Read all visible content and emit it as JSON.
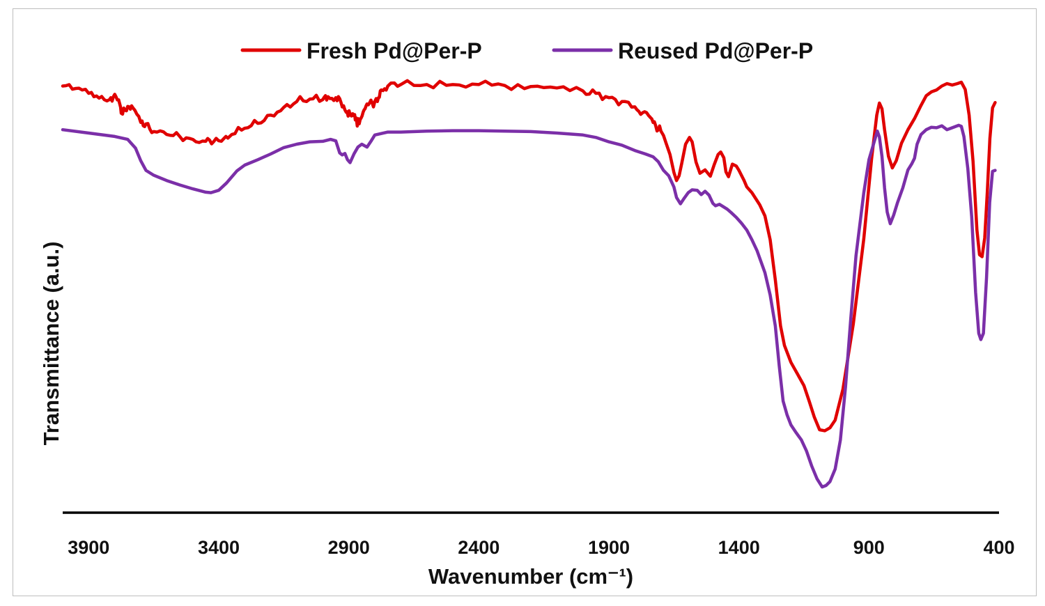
{
  "chart_data": {
    "type": "line",
    "title": "",
    "xlabel": "Wavenumber (cm⁻¹)",
    "ylabel": "Transmittance (a.u.)",
    "xlim": [
      4000,
      400
    ],
    "ylim": [
      0,
      100
    ],
    "x_reversed": true,
    "x_ticks": [
      3900,
      3400,
      2900,
      2400,
      1900,
      1400,
      900,
      400
    ],
    "legend": {
      "position": "top-center"
    },
    "series": [
      {
        "name": "Fresh Pd@Per-P",
        "color": "#e00000",
        "noise_below_cm": 1700,
        "points": [
          [
            4000,
            88
          ],
          [
            3950,
            87.5
          ],
          [
            3900,
            86.5
          ],
          [
            3860,
            85.5
          ],
          [
            3820,
            85.2
          ],
          [
            3800,
            86.3
          ],
          [
            3780,
            84.2
          ],
          [
            3770,
            82.2
          ],
          [
            3750,
            83.8
          ],
          [
            3730,
            83.5
          ],
          [
            3700,
            80.5
          ],
          [
            3680,
            80.2
          ],
          [
            3650,
            78.6
          ],
          [
            3600,
            78
          ],
          [
            3550,
            77.6
          ],
          [
            3500,
            77
          ],
          [
            3450,
            76.6
          ],
          [
            3420,
            76.5
          ],
          [
            3380,
            77.2
          ],
          [
            3350,
            78
          ],
          [
            3300,
            79.3
          ],
          [
            3250,
            80.3
          ],
          [
            3200,
            82
          ],
          [
            3150,
            83.6
          ],
          [
            3100,
            84.8
          ],
          [
            3050,
            85.3
          ],
          [
            3000,
            85.2
          ],
          [
            2980,
            85.8
          ],
          [
            2950,
            85.6
          ],
          [
            2930,
            84.6
          ],
          [
            2910,
            82.6
          ],
          [
            2895,
            82
          ],
          [
            2885,
            82.3
          ],
          [
            2875,
            81
          ],
          [
            2860,
            80.2
          ],
          [
            2845,
            82.6
          ],
          [
            2830,
            84.3
          ],
          [
            2810,
            84.5
          ],
          [
            2790,
            84.8
          ],
          [
            2775,
            87.2
          ],
          [
            2750,
            88
          ],
          [
            2700,
            88.3
          ],
          [
            2600,
            88.3
          ],
          [
            2500,
            88.3
          ],
          [
            2400,
            88.3
          ],
          [
            2300,
            88.1
          ],
          [
            2200,
            87.9
          ],
          [
            2100,
            87.6
          ],
          [
            2000,
            87
          ],
          [
            1950,
            86.5
          ],
          [
            1900,
            85.6
          ],
          [
            1850,
            84.8
          ],
          [
            1800,
            83.7
          ],
          [
            1770,
            82.5
          ],
          [
            1740,
            81.5
          ],
          [
            1720,
            79.8
          ],
          [
            1700,
            78.7
          ],
          [
            1690,
            77.8
          ],
          [
            1680,
            76.2
          ],
          [
            1665,
            73.9
          ],
          [
            1650,
            70.2
          ],
          [
            1640,
            68.5
          ],
          [
            1630,
            69.5
          ],
          [
            1620,
            72
          ],
          [
            1605,
            76
          ],
          [
            1590,
            77.4
          ],
          [
            1580,
            76.5
          ],
          [
            1565,
            72.3
          ],
          [
            1550,
            70
          ],
          [
            1530,
            70.7
          ],
          [
            1510,
            69.4
          ],
          [
            1495,
            71.8
          ],
          [
            1480,
            73.9
          ],
          [
            1470,
            74.4
          ],
          [
            1458,
            73.2
          ],
          [
            1450,
            70.3
          ],
          [
            1440,
            69.3
          ],
          [
            1425,
            71.9
          ],
          [
            1410,
            71.5
          ],
          [
            1400,
            70.6
          ],
          [
            1380,
            68.5
          ],
          [
            1370,
            67.2
          ],
          [
            1350,
            66
          ],
          [
            1320,
            63.5
          ],
          [
            1300,
            61.2
          ],
          [
            1280,
            56.3
          ],
          [
            1260,
            48
          ],
          [
            1240,
            38.5
          ],
          [
            1225,
            34.5
          ],
          [
            1200,
            31
          ],
          [
            1175,
            28.6
          ],
          [
            1150,
            26.2
          ],
          [
            1130,
            23
          ],
          [
            1110,
            19.7
          ],
          [
            1090,
            17.1
          ],
          [
            1070,
            16.9
          ],
          [
            1050,
            17.5
          ],
          [
            1030,
            19.1
          ],
          [
            1000,
            25.5
          ],
          [
            960,
            39
          ],
          [
            920,
            56.5
          ],
          [
            890,
            73
          ],
          [
            870,
            82
          ],
          [
            860,
            84.5
          ],
          [
            850,
            83.3
          ],
          [
            840,
            79
          ],
          [
            825,
            73.5
          ],
          [
            810,
            71.1
          ],
          [
            795,
            72.6
          ],
          [
            775,
            76.2
          ],
          [
            750,
            79
          ],
          [
            725,
            81.3
          ],
          [
            700,
            84
          ],
          [
            680,
            86
          ],
          [
            660,
            86.8
          ],
          [
            640,
            87.2
          ],
          [
            620,
            88
          ],
          [
            600,
            88.5
          ],
          [
            580,
            88.2
          ],
          [
            560,
            88.5
          ],
          [
            545,
            88.8
          ],
          [
            530,
            87.3
          ],
          [
            515,
            82
          ],
          [
            500,
            72.5
          ],
          [
            485,
            58.3
          ],
          [
            475,
            53.2
          ],
          [
            465,
            52.8
          ],
          [
            455,
            56.7
          ],
          [
            445,
            66.2
          ],
          [
            435,
            77.2
          ],
          [
            425,
            83.5
          ],
          [
            415,
            84.6
          ]
        ]
      },
      {
        "name": "Reused Pd@Per-P",
        "color": "#7b2fa8",
        "points": [
          [
            4000,
            79
          ],
          [
            3900,
            78.3
          ],
          [
            3800,
            77.6
          ],
          [
            3750,
            77
          ],
          [
            3720,
            75.2
          ],
          [
            3700,
            72.6
          ],
          [
            3680,
            70.6
          ],
          [
            3650,
            69.6
          ],
          [
            3600,
            68.5
          ],
          [
            3550,
            67.6
          ],
          [
            3500,
            66.8
          ],
          [
            3450,
            66.1
          ],
          [
            3430,
            66
          ],
          [
            3400,
            66.5
          ],
          [
            3370,
            68
          ],
          [
            3330,
            70.5
          ],
          [
            3300,
            71.7
          ],
          [
            3250,
            72.8
          ],
          [
            3200,
            74
          ],
          [
            3150,
            75.3
          ],
          [
            3100,
            76
          ],
          [
            3050,
            76.5
          ],
          [
            3000,
            76.6
          ],
          [
            2970,
            77
          ],
          [
            2950,
            76.7
          ],
          [
            2935,
            74.2
          ],
          [
            2925,
            73.8
          ],
          [
            2915,
            74.1
          ],
          [
            2905,
            72.8
          ],
          [
            2895,
            72.2
          ],
          [
            2880,
            74
          ],
          [
            2865,
            75.4
          ],
          [
            2850,
            76
          ],
          [
            2830,
            75.4
          ],
          [
            2815,
            76.6
          ],
          [
            2800,
            77.9
          ],
          [
            2750,
            78.5
          ],
          [
            2700,
            78.5
          ],
          [
            2600,
            78.7
          ],
          [
            2500,
            78.8
          ],
          [
            2400,
            78.8
          ],
          [
            2300,
            78.7
          ],
          [
            2200,
            78.6
          ],
          [
            2100,
            78.3
          ],
          [
            2000,
            77.9
          ],
          [
            1950,
            77.4
          ],
          [
            1900,
            76.5
          ],
          [
            1850,
            75.8
          ],
          [
            1800,
            74.7
          ],
          [
            1760,
            74
          ],
          [
            1730,
            73.4
          ],
          [
            1710,
            72.4
          ],
          [
            1690,
            70.6
          ],
          [
            1670,
            69.5
          ],
          [
            1650,
            67.2
          ],
          [
            1640,
            65
          ],
          [
            1625,
            63.7
          ],
          [
            1610,
            64.9
          ],
          [
            1595,
            66
          ],
          [
            1580,
            66.6
          ],
          [
            1560,
            66.5
          ],
          [
            1545,
            65.6
          ],
          [
            1530,
            66.3
          ],
          [
            1515,
            65.5
          ],
          [
            1500,
            63.8
          ],
          [
            1490,
            63.3
          ],
          [
            1475,
            63.6
          ],
          [
            1460,
            63.1
          ],
          [
            1445,
            62.6
          ],
          [
            1430,
            61.9
          ],
          [
            1410,
            60.9
          ],
          [
            1390,
            59.7
          ],
          [
            1370,
            58.3
          ],
          [
            1350,
            56.3
          ],
          [
            1330,
            54
          ],
          [
            1300,
            49.5
          ],
          [
            1280,
            44.9
          ],
          [
            1260,
            38.5
          ],
          [
            1245,
            30.3
          ],
          [
            1230,
            23
          ],
          [
            1215,
            20.2
          ],
          [
            1200,
            18.1
          ],
          [
            1180,
            16.5
          ],
          [
            1160,
            15
          ],
          [
            1140,
            12.7
          ],
          [
            1120,
            9.6
          ],
          [
            1100,
            7
          ],
          [
            1080,
            5.3
          ],
          [
            1065,
            5.6
          ],
          [
            1050,
            6.4
          ],
          [
            1030,
            9
          ],
          [
            1010,
            15
          ],
          [
            990,
            26
          ],
          [
            970,
            40
          ],
          [
            950,
            53
          ],
          [
            920,
            66
          ],
          [
            900,
            72.8
          ],
          [
            880,
            76.5
          ],
          [
            868,
            78.7
          ],
          [
            860,
            77.5
          ],
          [
            850,
            73.5
          ],
          [
            840,
            67
          ],
          [
            830,
            62
          ],
          [
            818,
            59.6
          ],
          [
            805,
            61.4
          ],
          [
            790,
            64
          ],
          [
            770,
            67
          ],
          [
            750,
            70.7
          ],
          [
            735,
            72
          ],
          [
            725,
            73.1
          ],
          [
            715,
            76
          ],
          [
            700,
            78
          ],
          [
            680,
            79
          ],
          [
            660,
            79.5
          ],
          [
            640,
            79.4
          ],
          [
            620,
            79.8
          ],
          [
            600,
            79
          ],
          [
            585,
            79.3
          ],
          [
            570,
            79.6
          ],
          [
            555,
            79.9
          ],
          [
            545,
            79.7
          ],
          [
            535,
            77.6
          ],
          [
            520,
            71
          ],
          [
            505,
            61
          ],
          [
            490,
            45.4
          ],
          [
            478,
            37
          ],
          [
            470,
            35.7
          ],
          [
            460,
            37
          ],
          [
            448,
            48.5
          ],
          [
            436,
            64
          ],
          [
            425,
            70.4
          ],
          [
            415,
            70.6
          ]
        ]
      }
    ]
  }
}
